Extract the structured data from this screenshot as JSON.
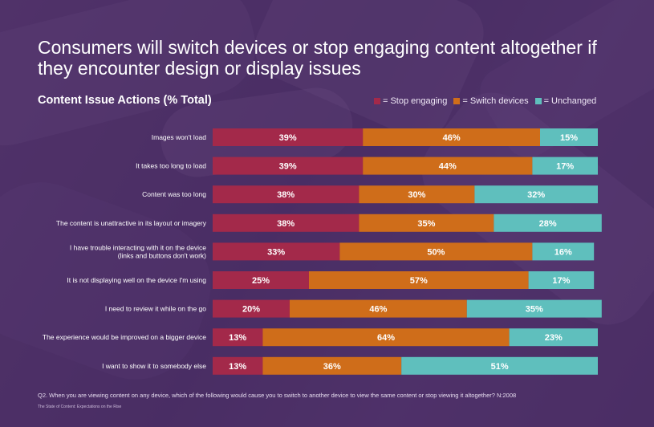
{
  "title": "Consumers will switch devices or stop engaging content altogether if they encounter design or display issues",
  "chart_data": {
    "type": "bar",
    "orientation": "horizontal",
    "stacked": true,
    "title": "Content Issue Actions (% Total)",
    "xlim": [
      0,
      100
    ],
    "categories": [
      [
        "Images won't load"
      ],
      [
        "It takes too long to load"
      ],
      [
        "Content was too long"
      ],
      [
        "The content is unattractive in its layout or imagery"
      ],
      [
        "I have trouble interacting with it on the device",
        "(links and buttons don't work)"
      ],
      [
        "It is not displaying well on the device I'm using"
      ],
      [
        "I need to review it while on the go"
      ],
      [
        "The experience would be improved on a bigger device"
      ],
      [
        "I want to show it to somebody else"
      ]
    ],
    "series": [
      {
        "name": "Stop engaging",
        "color": "#a3294a",
        "values": [
          39,
          39,
          38,
          38,
          33,
          25,
          20,
          13,
          13
        ]
      },
      {
        "name": "Switch devices",
        "color": "#cf6d1a",
        "values": [
          46,
          44,
          30,
          35,
          50,
          57,
          46,
          64,
          36
        ]
      },
      {
        "name": "Unchanged",
        "color": "#5fbfbd",
        "values": [
          15,
          17,
          32,
          28,
          16,
          17,
          35,
          23,
          51
        ]
      }
    ],
    "value_suffix": "%",
    "legend_position": "top-right"
  },
  "legend_prefix": "= ",
  "footnote": "Q2. When you are viewing content on any device, which of the following would cause you to switch to another device to view the same content or stop viewing it altogether? N:2008",
  "source": "The State of Content: Expectations on the Rise"
}
